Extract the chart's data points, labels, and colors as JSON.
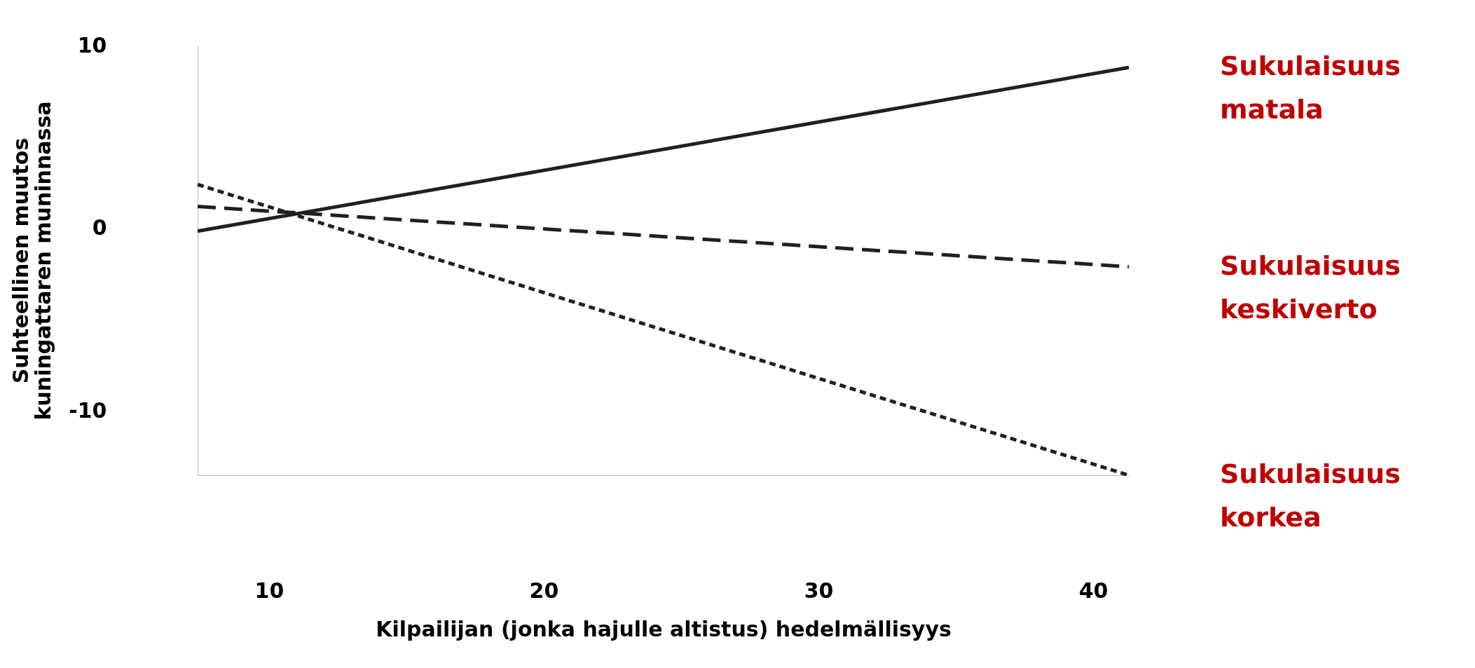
{
  "chart_data": {
    "type": "line",
    "xlabel": "Kilpailijan (jonka hajulle altistus) hedelmällisyys",
    "ylabel": "Suhteellinen muutos kuningattaren muninnassa",
    "x": [
      7.4,
      41.3
    ],
    "series": [
      {
        "name": "Sukulaisuus matala",
        "color": "#231f20",
        "line_style": "solid",
        "values": [
          -0.15,
          8.8
        ]
      },
      {
        "name": "Sukulaisuus keskiverto",
        "color": "#231f20",
        "line_style": "dashed",
        "values": [
          1.2,
          -2.1
        ]
      },
      {
        "name": "Sukulaisuus korkea",
        "color": "#231f20",
        "line_style": "dotted",
        "values": [
          2.4,
          -13.5
        ]
      }
    ],
    "xlim": [
      7.4,
      41.3
    ],
    "xticks": [
      10,
      20,
      30,
      40
    ],
    "ylim": [
      -13.5,
      10
    ],
    "yticks": [
      {
        "value": -10,
        "label": "-10"
      },
      0,
      10
    ],
    "grid": false,
    "marker": "none"
  }
}
